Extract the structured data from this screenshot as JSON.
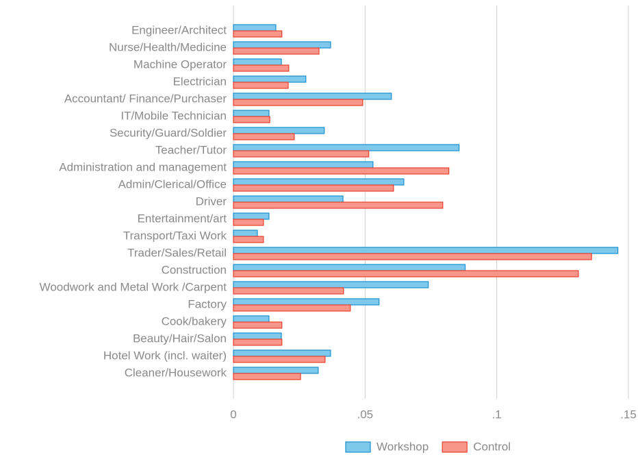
{
  "chart_data": {
    "type": "bar",
    "orientation": "horizontal",
    "categories": [
      "Engineer/Architect",
      "Nurse/Health/Medicine",
      "Machine Operator",
      "Electrician",
      "Accountant/ Finance/Purchaser",
      "IT/Mobile Technician",
      "Security/Guard/Soldier",
      "Teacher/Tutor",
      "Administration and management",
      "Admin/Clerical/Office",
      "Driver",
      "Entertainment/art",
      "Transport/Taxi Work",
      "Trader/Sales/Retail",
      "Construction",
      "Woodwork and Metal Work /Carpent",
      "Factory",
      "Cook/bakery",
      "Beauty/Hair/Salon",
      "Hotel Work (incl. waiter)",
      "Cleaner/Housework"
    ],
    "series": [
      {
        "name": "Workshop",
        "color": "#7ec8ec",
        "edge": "#1a8fd0",
        "values": [
          0.0161,
          0.0369,
          0.0182,
          0.0275,
          0.06,
          0.0135,
          0.0345,
          0.0857,
          0.053,
          0.0647,
          0.0416,
          0.0135,
          0.0091,
          0.146,
          0.088,
          0.074,
          0.0553,
          0.0135,
          0.0182,
          0.0369,
          0.0322
        ]
      },
      {
        "name": "Control",
        "color": "#f9968a",
        "edge": "#e8402e",
        "values": [
          0.0184,
          0.0325,
          0.021,
          0.0208,
          0.0491,
          0.0138,
          0.0231,
          0.0514,
          0.0818,
          0.0608,
          0.0795,
          0.0114,
          0.0114,
          0.136,
          0.131,
          0.0418,
          0.0444,
          0.0184,
          0.0184,
          0.0348,
          0.0255
        ]
      }
    ],
    "xlim": [
      0,
      0.15
    ],
    "xticks": [
      0,
      {
        "value": 0.05,
        "label": ".05"
      },
      {
        "value": 0.1,
        "label": ".1"
      },
      {
        "value": 0.15,
        "label": ".15"
      }
    ],
    "grid": true
  }
}
